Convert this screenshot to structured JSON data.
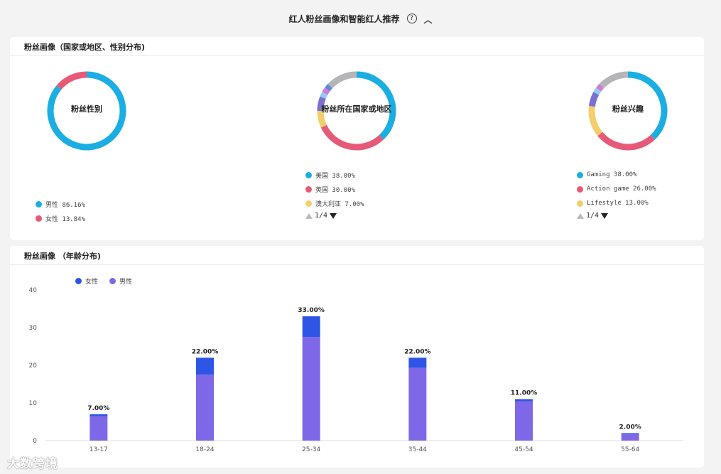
{
  "header": {
    "title": "红人粉丝画像和智能红人推荐",
    "help_icon": "?",
    "collapse_icon": "^"
  },
  "section1": {
    "title": "粉丝画像（国家或地区、性别分布)",
    "donuts": [
      {
        "label": "粉丝性别",
        "slices": [
          {
            "name": "男性",
            "value": 86.16,
            "color": "#1aaee3"
          },
          {
            "name": "女性",
            "value": 13.84,
            "color": "#e65a77"
          }
        ],
        "legend": [
          {
            "text": "男性 86.16%",
            "color": "#1aaee3"
          },
          {
            "text": "女性 13.84%",
            "color": "#e65a77"
          }
        ],
        "pager": ""
      },
      {
        "label": "粉丝所在国家或地区",
        "slices": [
          {
            "name": "美国",
            "value": 38,
            "color": "#1aaee3"
          },
          {
            "name": "英国",
            "value": 30,
            "color": "#e65a77"
          },
          {
            "name": "澳大利亚",
            "value": 7,
            "color": "#f3cf6a"
          },
          {
            "name": "",
            "value": 6,
            "color": "#7b6fd0"
          },
          {
            "name": "",
            "value": 2,
            "color": "#8fcff0"
          },
          {
            "name": "",
            "value": 2,
            "color": "#d57ad8"
          },
          {
            "name": "",
            "value": 2,
            "color": "#5b8be0"
          },
          {
            "name": "",
            "value": 13,
            "color": "#b5b5b8"
          }
        ],
        "legend": [
          {
            "text": "美国 38.00%",
            "color": "#1aaee3"
          },
          {
            "text": "英国 30.00%",
            "color": "#e65a77"
          },
          {
            "text": "澳大利亚 7.00%",
            "color": "#f3cf6a"
          }
        ],
        "pager": "1/4"
      },
      {
        "label": "粉丝兴趣",
        "slices": [
          {
            "name": "Gaming",
            "value": 38,
            "color": "#1aaee3"
          },
          {
            "name": "Action game",
            "value": 26,
            "color": "#e65a77"
          },
          {
            "name": "Lifestyle",
            "value": 13,
            "color": "#f3cf6a"
          },
          {
            "name": "",
            "value": 6,
            "color": "#7b6fd0"
          },
          {
            "name": "",
            "value": 2,
            "color": "#8fcff0"
          },
          {
            "name": "",
            "value": 2,
            "color": "#d57ad8"
          },
          {
            "name": "",
            "value": 13,
            "color": "#b5b5b8"
          }
        ],
        "legend": [
          {
            "text": "Gaming 38.00%",
            "color": "#1aaee3"
          },
          {
            "text": "Action game 26.00%",
            "color": "#e65a77"
          },
          {
            "text": "Lifestyle 13.00%",
            "color": "#f3cf6a"
          }
        ],
        "pager": "1/4"
      }
    ]
  },
  "section2": {
    "title": "粉丝画像  （年龄分布)",
    "legend": [
      {
        "text": "女性",
        "color": "#2f55e4"
      },
      {
        "text": "男性",
        "color": "#7e68e8"
      }
    ]
  },
  "chart_data": {
    "type": "bar",
    "stacked": true,
    "categories": [
      "13-17",
      "18-24",
      "25-34",
      "35-44",
      "45-54",
      "55-64"
    ],
    "series": [
      {
        "name": "男性",
        "color": "#7e68e8",
        "values": [
          6.5,
          17.5,
          27.5,
          19.3,
          10.4,
          1.8
        ]
      },
      {
        "name": "女性",
        "color": "#2f55e4",
        "values": [
          0.5,
          4.5,
          5.5,
          2.7,
          0.6,
          0.2
        ]
      }
    ],
    "totals_labels": [
      "7.00%",
      "22.00%",
      "33.00%",
      "22.00%",
      "11.00%",
      "2.00%"
    ],
    "totals": [
      7,
      22,
      33,
      22,
      11,
      2
    ],
    "yticks": [
      0,
      10,
      20,
      30,
      40
    ],
    "ylim": [
      0,
      40
    ],
    "grid": false
  },
  "watermark": "大数跨境"
}
